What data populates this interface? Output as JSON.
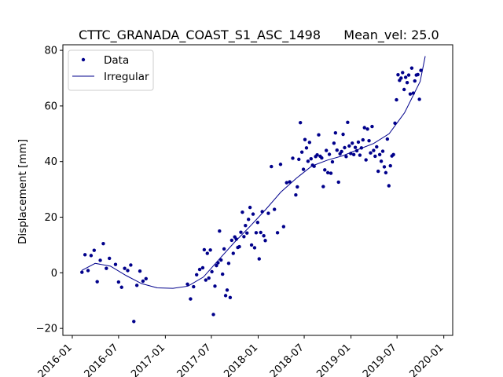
{
  "chart_data": {
    "type": "scatter",
    "title": "CTTC_GRANADA_COAST_S1_ASC_1498",
    "title_extra": "Mean_vel: 25.0",
    "xlabel": "",
    "ylabel": "Displacement [mm]",
    "xlim": [
      "2015-11-25",
      "2020-02-05"
    ],
    "ylim": [
      -22.5,
      82
    ],
    "grid": false,
    "legend_position": "top-left",
    "x_ticks": [
      "2016-01",
      "2016-07",
      "2017-01",
      "2017-07",
      "2018-01",
      "2018-07",
      "2019-01",
      "2019-07",
      "2020-01"
    ],
    "y_ticks": [
      -20,
      0,
      20,
      40,
      60,
      80
    ],
    "series": [
      {
        "name": "Data",
        "kind": "points",
        "color": "#00008b",
        "points": [
          [
            "2016-02-08",
            0.2
          ],
          [
            "2016-02-20",
            6.5
          ],
          [
            "2016-03-03",
            0.8
          ],
          [
            "2016-03-15",
            6.2
          ],
          [
            "2016-03-27",
            8.1
          ],
          [
            "2016-04-08",
            -3.2
          ],
          [
            "2016-04-20",
            4.5
          ],
          [
            "2016-05-02",
            10.5
          ],
          [
            "2016-05-14",
            1.6
          ],
          [
            "2016-05-26",
            5.2
          ],
          [
            "2016-06-19",
            3.0
          ],
          [
            "2016-07-01",
            -3.3
          ],
          [
            "2016-07-13",
            -5.2
          ],
          [
            "2016-07-25",
            1.6
          ],
          [
            "2016-08-06",
            0.8
          ],
          [
            "2016-08-18",
            2.8
          ],
          [
            "2016-08-30",
            -17.5
          ],
          [
            "2016-09-11",
            -4.5
          ],
          [
            "2016-09-23",
            0.6
          ],
          [
            "2016-10-05",
            -3.0
          ],
          [
            "2016-10-17",
            -2.1
          ],
          [
            "2017-03-29",
            -4.1
          ],
          [
            "2017-04-10",
            -9.4
          ],
          [
            "2017-04-22",
            -5.0
          ],
          [
            "2017-05-04",
            -0.7
          ],
          [
            "2017-05-16",
            1.2
          ],
          [
            "2017-05-28",
            1.8
          ],
          [
            "2017-06-03",
            8.3
          ],
          [
            "2017-06-09",
            -2.6
          ],
          [
            "2017-06-15",
            7.0
          ],
          [
            "2017-06-21",
            -1.9
          ],
          [
            "2017-06-27",
            8.2
          ],
          [
            "2017-07-03",
            0.4
          ],
          [
            "2017-07-09",
            -15.0
          ],
          [
            "2017-07-15",
            -4.8
          ],
          [
            "2017-07-21",
            2.6
          ],
          [
            "2017-07-27",
            3.6
          ],
          [
            "2017-08-02",
            15.0
          ],
          [
            "2017-08-08",
            4.6
          ],
          [
            "2017-08-14",
            -0.5
          ],
          [
            "2017-08-20",
            8.6
          ],
          [
            "2017-08-26",
            -8.2
          ],
          [
            "2017-09-01",
            -6.2
          ],
          [
            "2017-09-07",
            3.4
          ],
          [
            "2017-09-13",
            -8.9
          ],
          [
            "2017-09-19",
            11.7
          ],
          [
            "2017-09-25",
            7.0
          ],
          [
            "2017-10-01",
            12.9
          ],
          [
            "2017-10-07",
            12.1
          ],
          [
            "2017-10-13",
            9.1
          ],
          [
            "2017-10-19",
            9.4
          ],
          [
            "2017-10-25",
            14.6
          ],
          [
            "2017-10-31",
            21.8
          ],
          [
            "2017-11-06",
            13.0
          ],
          [
            "2017-11-12",
            17.0
          ],
          [
            "2017-11-18",
            14.3
          ],
          [
            "2017-11-24",
            19.2
          ],
          [
            "2017-11-30",
            23.5
          ],
          [
            "2017-12-06",
            10.0
          ],
          [
            "2017-12-12",
            21.1
          ],
          [
            "2017-12-18",
            9.0
          ],
          [
            "2017-12-24",
            14.4
          ],
          [
            "2017-12-30",
            18.1
          ],
          [
            "2018-01-05",
            5.0
          ],
          [
            "2018-01-11",
            14.5
          ],
          [
            "2018-01-17",
            22.0
          ],
          [
            "2018-01-23",
            13.3
          ],
          [
            "2018-01-29",
            11.6
          ],
          [
            "2018-02-10",
            21.4
          ],
          [
            "2018-02-22",
            38.2
          ],
          [
            "2018-03-06",
            22.8
          ],
          [
            "2018-03-18",
            14.4
          ],
          [
            "2018-03-30",
            39.0
          ],
          [
            "2018-04-11",
            16.6
          ],
          [
            "2018-04-23",
            32.4
          ],
          [
            "2018-05-05",
            32.7
          ],
          [
            "2018-05-17",
            41.2
          ],
          [
            "2018-05-29",
            28.0
          ],
          [
            "2018-06-04",
            30.9
          ],
          [
            "2018-06-10",
            40.8
          ],
          [
            "2018-06-16",
            54.0
          ],
          [
            "2018-06-22",
            43.4
          ],
          [
            "2018-06-28",
            37.2
          ],
          [
            "2018-07-04",
            47.9
          ],
          [
            "2018-07-10",
            44.9
          ],
          [
            "2018-07-16",
            40.1
          ],
          [
            "2018-07-22",
            46.9
          ],
          [
            "2018-07-28",
            41.0
          ],
          [
            "2018-08-03",
            38.7
          ],
          [
            "2018-08-09",
            38.3
          ],
          [
            "2018-08-15",
            41.8
          ],
          [
            "2018-08-21",
            42.4
          ],
          [
            "2018-08-27",
            49.6
          ],
          [
            "2018-09-02",
            41.9
          ],
          [
            "2018-09-08",
            41.3
          ],
          [
            "2018-09-14",
            31.0
          ],
          [
            "2018-09-20",
            37.0
          ],
          [
            "2018-09-26",
            44.0
          ],
          [
            "2018-10-02",
            36.0
          ],
          [
            "2018-10-08",
            42.6
          ],
          [
            "2018-10-14",
            35.8
          ],
          [
            "2018-10-20",
            39.9
          ],
          [
            "2018-10-26",
            46.6
          ],
          [
            "2018-11-01",
            50.3
          ],
          [
            "2018-11-07",
            44.1
          ],
          [
            "2018-11-13",
            32.6
          ],
          [
            "2018-11-19",
            42.8
          ],
          [
            "2018-11-25",
            43.6
          ],
          [
            "2018-12-01",
            49.8
          ],
          [
            "2018-12-07",
            45.0
          ],
          [
            "2018-12-13",
            41.8
          ],
          [
            "2018-12-19",
            54.1
          ],
          [
            "2018-12-25",
            45.6
          ],
          [
            "2018-12-31",
            42.9
          ],
          [
            "2019-01-06",
            46.6
          ],
          [
            "2019-01-12",
            42.5
          ],
          [
            "2019-01-18",
            45.1
          ],
          [
            "2019-01-24",
            43.9
          ],
          [
            "2019-01-30",
            47.0
          ],
          [
            "2019-02-05",
            42.3
          ],
          [
            "2019-02-11",
            44.9
          ],
          [
            "2019-02-17",
            47.8
          ],
          [
            "2019-02-23",
            52.2
          ],
          [
            "2019-03-01",
            40.6
          ],
          [
            "2019-03-07",
            51.7
          ],
          [
            "2019-03-13",
            47.5
          ],
          [
            "2019-03-19",
            43.1
          ],
          [
            "2019-03-25",
            52.6
          ],
          [
            "2019-03-31",
            44.0
          ],
          [
            "2019-04-06",
            41.9
          ],
          [
            "2019-04-12",
            45.3
          ],
          [
            "2019-04-18",
            36.5
          ],
          [
            "2019-04-24",
            42.5
          ],
          [
            "2019-04-30",
            40.1
          ],
          [
            "2019-05-06",
            43.7
          ],
          [
            "2019-05-12",
            38.1
          ],
          [
            "2019-05-18",
            36.0
          ],
          [
            "2019-05-24",
            48.1
          ],
          [
            "2019-05-30",
            31.3
          ],
          [
            "2019-06-05",
            38.5
          ],
          [
            "2019-06-11",
            42.0
          ],
          [
            "2019-06-17",
            42.5
          ],
          [
            "2019-06-23",
            53.8
          ],
          [
            "2019-06-29",
            62.2
          ],
          [
            "2019-07-05",
            71.2
          ],
          [
            "2019-07-11",
            69.2
          ],
          [
            "2019-07-17",
            70.0
          ],
          [
            "2019-07-23",
            72.0
          ],
          [
            "2019-07-29",
            65.9
          ],
          [
            "2019-08-04",
            70.3
          ],
          [
            "2019-08-10",
            68.4
          ],
          [
            "2019-08-16",
            71.1
          ],
          [
            "2019-08-22",
            64.3
          ],
          [
            "2019-08-28",
            73.6
          ],
          [
            "2019-09-03",
            64.6
          ],
          [
            "2019-09-09",
            69.0
          ],
          [
            "2019-09-15",
            71.1
          ],
          [
            "2019-09-21",
            71.3
          ],
          [
            "2019-09-27",
            62.4
          ],
          [
            "2019-10-03",
            72.8
          ]
        ]
      },
      {
        "name": "Irregular",
        "kind": "line",
        "color": "#00008b",
        "points": [
          [
            "2016-02-08",
            0.9
          ],
          [
            "2016-03-31",
            3.4
          ],
          [
            "2016-05-30",
            2.4
          ],
          [
            "2016-07-31",
            -1.0
          ],
          [
            "2016-09-30",
            -3.9
          ],
          [
            "2016-11-30",
            -5.4
          ],
          [
            "2017-01-31",
            -5.6
          ],
          [
            "2017-03-31",
            -4.8
          ],
          [
            "2017-05-31",
            -1.5
          ],
          [
            "2017-07-31",
            4.8
          ],
          [
            "2017-09-30",
            11.0
          ],
          [
            "2017-11-30",
            16.7
          ],
          [
            "2018-01-31",
            22.8
          ],
          [
            "2018-03-31",
            29.0
          ],
          [
            "2018-05-31",
            34.0
          ],
          [
            "2018-07-31",
            38.4
          ],
          [
            "2018-09-30",
            40.5
          ],
          [
            "2018-11-30",
            42.1
          ],
          [
            "2019-01-31",
            44.4
          ],
          [
            "2019-03-31",
            46.5
          ],
          [
            "2019-05-31",
            50.0
          ],
          [
            "2019-07-31",
            57.6
          ],
          [
            "2019-09-30",
            68.8
          ],
          [
            "2019-10-20",
            77.9
          ]
        ]
      }
    ]
  }
}
